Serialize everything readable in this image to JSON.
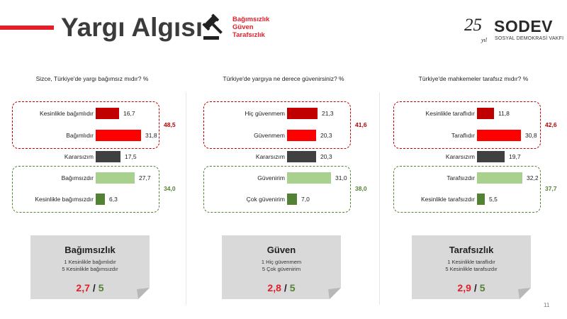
{
  "header": {
    "title": "Yargı Algısı",
    "tag_lines": [
      "Bağımsızlık",
      "Güven",
      "Tarafsızlık"
    ]
  },
  "logo": {
    "number": "25",
    "year_word": "yıl",
    "brand": "SODEV",
    "subtitle": "SOSYAL DEMOKRASİ VAKFI"
  },
  "colors": {
    "accent_red": "#e2202c",
    "dark_red": "#c00000",
    "bright_red": "#ff0000",
    "neutral": "#404040",
    "light_green": "#a9d18e",
    "dark_green": "#548235"
  },
  "chart_data": [
    {
      "type": "bar",
      "orientation": "horizontal",
      "title": "Sizce, Türkiye'de yargı bağımsız mıdır? %",
      "categories": [
        "Kesinlikle bağımlıdır",
        "Bağımlıdır",
        "Kararsızım",
        "Bağımsızdır",
        "Kesinlikle bağımsızdır"
      ],
      "values": [
        16.7,
        31.8,
        17.5,
        27.7,
        6.3
      ],
      "value_labels": [
        "16,7",
        "31,8",
        "17,5",
        "27,7",
        "6,3"
      ],
      "colors": [
        "#c00000",
        "#ff0000",
        "#404040",
        "#a9d18e",
        "#548235"
      ],
      "groups": [
        {
          "rows": [
            0,
            1
          ],
          "sum": "48,5",
          "color": "#c00000"
        },
        {
          "rows": [
            3,
            4
          ],
          "sum": "34,0",
          "color": "#548235"
        }
      ],
      "xlim": [
        0,
        35
      ],
      "summary_card": {
        "title": "Bağımsızlık",
        "scale_lines": [
          "1 Kesinlikle bağımlıdır",
          "5 Kesinlikle bağımsızdır"
        ],
        "score": "2,7",
        "separator": "/",
        "max": "5"
      }
    },
    {
      "type": "bar",
      "orientation": "horizontal",
      "title": "Türkiye'de yargıya ne derece güvenirsiniz? %",
      "categories": [
        "Hiç güvenmem",
        "Güvenmem",
        "Kararsızım",
        "Güvenirim",
        "Çok güvenirim"
      ],
      "values": [
        21.3,
        20.3,
        20.3,
        31.0,
        7.0
      ],
      "value_labels": [
        "21,3",
        "20,3",
        "20,3",
        "31,0",
        "7,0"
      ],
      "colors": [
        "#c00000",
        "#ff0000",
        "#404040",
        "#a9d18e",
        "#548235"
      ],
      "groups": [
        {
          "rows": [
            0,
            1
          ],
          "sum": "41,6",
          "color": "#c00000"
        },
        {
          "rows": [
            3,
            4
          ],
          "sum": "38,0",
          "color": "#548235"
        }
      ],
      "xlim": [
        0,
        35
      ],
      "summary_card": {
        "title": "Güven",
        "scale_lines": [
          "1 Hiç güvenmem",
          "5 Çok güvenirim"
        ],
        "score": "2,8",
        "separator": "/",
        "max": "5"
      }
    },
    {
      "type": "bar",
      "orientation": "horizontal",
      "title": "Türkiye'de mahkemeler tarafsız mıdır? %",
      "categories": [
        "Kesinlikle taraflıdır",
        "Taraflıdır",
        "Kararsızım",
        "Tarafsızdır",
        "Kesinlikle tarafsızdır"
      ],
      "values": [
        11.8,
        30.8,
        19.7,
        32.2,
        5.5
      ],
      "value_labels": [
        "11,8",
        "30,8",
        "19,7",
        "32,2",
        "5,5"
      ],
      "colors": [
        "#c00000",
        "#ff0000",
        "#404040",
        "#a9d18e",
        "#548235"
      ],
      "groups": [
        {
          "rows": [
            0,
            1
          ],
          "sum": "42,6",
          "color": "#c00000"
        },
        {
          "rows": [
            3,
            4
          ],
          "sum": "37,7",
          "color": "#548235"
        }
      ],
      "xlim": [
        0,
        35
      ],
      "summary_card": {
        "title": "Tarafsızlık",
        "scale_lines": [
          "1 Kesinlikle taraflıdır",
          "5 Kesinlikle tarafsızdır"
        ],
        "score": "2,9",
        "separator": "/",
        "max": "5"
      }
    }
  ],
  "page_number": "11"
}
